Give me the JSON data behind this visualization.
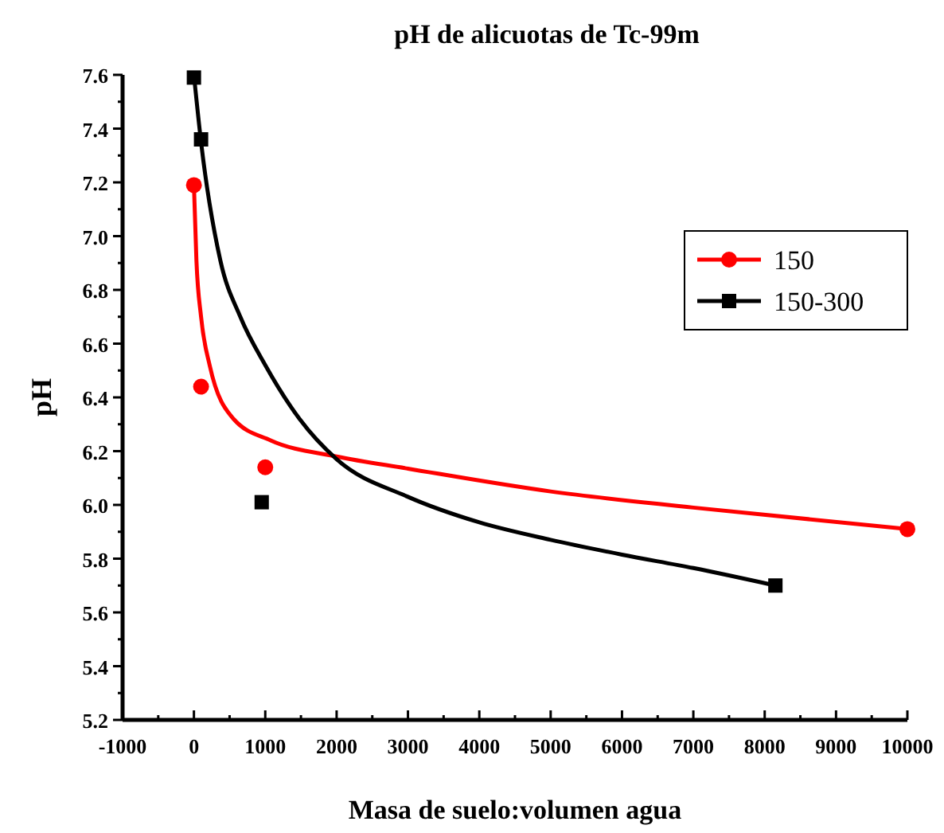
{
  "chart_data": {
    "type": "scatter",
    "title": "pH de alicuotas de Tc-99m",
    "xlabel": "Masa de suelo:volumen agua",
    "ylabel": "pH",
    "xlim": [
      -1000,
      10000
    ],
    "ylim": [
      5.2,
      7.6
    ],
    "xticks": [
      -1000,
      {
        "value": -500,
        "label": null
      },
      0,
      {
        "value": 500,
        "label": null
      },
      1000,
      {
        "value": 1500,
        "label": null
      },
      2000,
      {
        "value": 2500,
        "label": null
      },
      3000,
      {
        "value": 3500,
        "label": null
      },
      4000,
      {
        "value": 4500,
        "label": null
      },
      5000,
      {
        "value": 5500,
        "label": null
      },
      6000,
      {
        "value": 6500,
        "label": null
      },
      7000,
      {
        "value": 7500,
        "label": null
      },
      8000,
      {
        "value": 8500,
        "label": null
      },
      9000,
      {
        "value": 9500,
        "label": null
      },
      10000
    ],
    "yticks": [
      {
        "value": 5.2,
        "label": "5.2"
      },
      {
        "value": 5.3,
        "label": null
      },
      {
        "value": 5.4,
        "label": "5.4"
      },
      {
        "value": 5.5,
        "label": null
      },
      {
        "value": 5.6,
        "label": "5.6"
      },
      {
        "value": 5.7,
        "label": null
      },
      {
        "value": 5.8,
        "label": "5.8"
      },
      {
        "value": 5.9,
        "label": null
      },
      {
        "value": 6.0,
        "label": "6.0"
      },
      {
        "value": 6.1,
        "label": null
      },
      {
        "value": 6.2,
        "label": "6.2"
      },
      {
        "value": 6.3,
        "label": null
      },
      {
        "value": 6.4,
        "label": "6.4"
      },
      {
        "value": 6.5,
        "label": null
      },
      {
        "value": 6.6,
        "label": "6.6"
      },
      {
        "value": 6.7,
        "label": null
      },
      {
        "value": 6.8,
        "label": "6.8"
      },
      {
        "value": 6.9,
        "label": null
      },
      {
        "value": 7.0,
        "label": "7.0"
      },
      {
        "value": 7.1,
        "label": null
      },
      {
        "value": 7.2,
        "label": "7.2"
      },
      {
        "value": 7.3,
        "label": null
      },
      {
        "value": 7.4,
        "label": "7.4"
      },
      {
        "value": 7.5,
        "label": null
      },
      {
        "value": 7.6,
        "label": "7.6"
      }
    ],
    "grid": false,
    "legend": "top right",
    "series": [
      {
        "name": "150",
        "marker": "circle",
        "color": "#ff0000",
        "x": [
          0,
          100,
          1000,
          10000
        ],
        "values": [
          7.19,
          6.44,
          6.14,
          5.91
        ]
      },
      {
        "name": "150-300",
        "marker": "square",
        "color": "#000000",
        "x": [
          0,
          100,
          950,
          8150
        ],
        "values": [
          7.59,
          7.36,
          6.01,
          5.7
        ]
      },
      {
        "type": "line",
        "marker": "none",
        "color": "#ff0000",
        "x": [
          0,
          35,
          100,
          220,
          555,
          1075,
          2000,
          3000,
          5000,
          7000,
          10000
        ],
        "values": [
          7.19,
          6.91,
          6.7,
          6.52,
          6.32,
          6.24,
          6.18,
          6.135,
          6.05,
          5.99,
          5.91
        ]
      },
      {
        "type": "line",
        "marker": "none",
        "color": "#000000",
        "x": [
          0,
          100,
          370,
          650,
          1000,
          1480,
          2000,
          3000,
          4000,
          5000,
          6000,
          7000,
          8150
        ],
        "values": [
          7.6,
          7.35,
          6.91,
          6.7,
          6.52,
          6.32,
          6.17,
          6.03,
          5.935,
          5.87,
          5.815,
          5.765,
          5.7
        ]
      }
    ]
  }
}
